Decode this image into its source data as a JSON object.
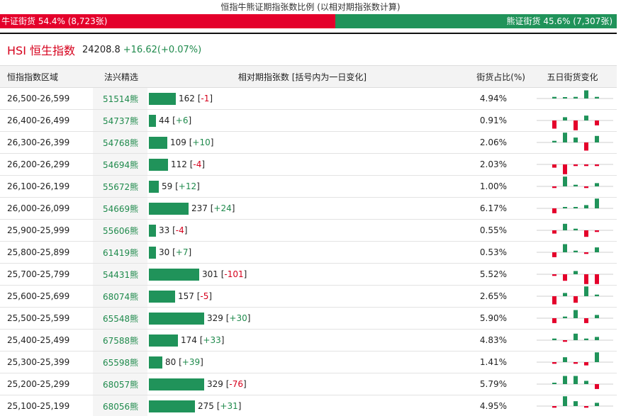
{
  "header": {
    "title": "恒指牛熊证期指张数比例 (以相对期指张数计算)",
    "bull_label": "牛证街货 54.4% (8,723张)",
    "bear_label": "熊证街货 45.6% (7,307张)",
    "bull_fraction": 0.544
  },
  "index": {
    "name": "HSI 恒生指数",
    "value": "24208.8",
    "change": "+16.62(+0.07%)"
  },
  "columns": {
    "range": "恒指指数区域",
    "code": "法兴精选",
    "bar": "相对期指张数 [括号内为一日变化]",
    "pct": "街货占比(%)",
    "spark": "五日街货变化"
  },
  "colors": {
    "bull": "#e4002b",
    "bear": "#20935a",
    "up": "#1f8a4c",
    "down": "#d6001c"
  },
  "rows": [
    {
      "range": "26,500-26,599",
      "code": "51514熊",
      "count": 162,
      "count_text": "162",
      "delta": "-1",
      "pct": "4.94%",
      "spark": [
        1,
        0,
        1,
        5,
        1
      ]
    },
    {
      "range": "26,400-26,499",
      "code": "54737熊",
      "count": 44,
      "count_text": "44",
      "delta": "+6",
      "pct": "0.91%",
      "spark": [
        -5,
        2,
        -6,
        3,
        -3
      ]
    },
    {
      "range": "26,300-26,399",
      "code": "54768熊",
      "count": 109,
      "count_text": "109",
      "delta": "+10",
      "pct": "2.06%",
      "spark": [
        1,
        6,
        3,
        -5,
        4
      ]
    },
    {
      "range": "26,200-26,299",
      "code": "54694熊",
      "count": 112,
      "count_text": "112",
      "delta": "-4",
      "pct": "2.03%",
      "spark": [
        -2,
        -6,
        -1,
        -1,
        -1
      ]
    },
    {
      "range": "26,100-26,199",
      "code": "55672熊",
      "count": 59,
      "count_text": "59",
      "delta": "+12",
      "pct": "1.00%",
      "spark": [
        -1,
        6,
        1,
        -1,
        2
      ]
    },
    {
      "range": "26,000-26,099",
      "code": "54669熊",
      "count": 237,
      "count_text": "237",
      "delta": "+24",
      "pct": "6.17%",
      "spark": [
        -3,
        0,
        0,
        2,
        6
      ]
    },
    {
      "range": "25,900-25,999",
      "code": "55606熊",
      "count": 33,
      "count_text": "33",
      "delta": "-4",
      "pct": "0.55%",
      "spark": [
        -2,
        4,
        1,
        -4,
        -1
      ]
    },
    {
      "range": "25,800-25,899",
      "code": "61419熊",
      "count": 30,
      "count_text": "30",
      "delta": "+7",
      "pct": "0.53%",
      "spark": [
        -3,
        5,
        1,
        -1,
        3
      ]
    },
    {
      "range": "25,700-25,799",
      "code": "54431熊",
      "count": 301,
      "count_text": "301",
      "delta": "-101",
      "pct": "5.52%",
      "spark": [
        -1,
        -4,
        2,
        -6,
        -6
      ]
    },
    {
      "range": "25,600-25,699",
      "code": "68074熊",
      "count": 157,
      "count_text": "157",
      "delta": "-5",
      "pct": "2.65%",
      "spark": [
        -5,
        2,
        -4,
        6,
        1
      ]
    },
    {
      "range": "25,500-25,599",
      "code": "65548熊",
      "count": 329,
      "count_text": "329",
      "delta": "+30",
      "pct": "5.90%",
      "spark": [
        -3,
        1,
        5,
        -3,
        2
      ]
    },
    {
      "range": "25,400-25,499",
      "code": "67588熊",
      "count": 174,
      "count_text": "174",
      "delta": "+33",
      "pct": "4.83%",
      "spark": [
        1,
        -1,
        4,
        1,
        2
      ]
    },
    {
      "range": "25,300-25,399",
      "code": "65598熊",
      "count": 80,
      "count_text": "80",
      "delta": "+39",
      "pct": "1.41%",
      "spark": [
        -1,
        3,
        -1,
        -2,
        6
      ]
    },
    {
      "range": "25,200-25,299",
      "code": "68057熊",
      "count": 329,
      "count_text": "329",
      "delta": "-76",
      "pct": "5.79%",
      "spark": [
        0,
        5,
        5,
        2,
        -3
      ]
    },
    {
      "range": "25,100-25,199",
      "code": "68056熊",
      "count": 275,
      "count_text": "275",
      "delta": "+31",
      "pct": "4.95%",
      "spark": [
        -1,
        6,
        3,
        -1,
        2
      ]
    }
  ]
}
